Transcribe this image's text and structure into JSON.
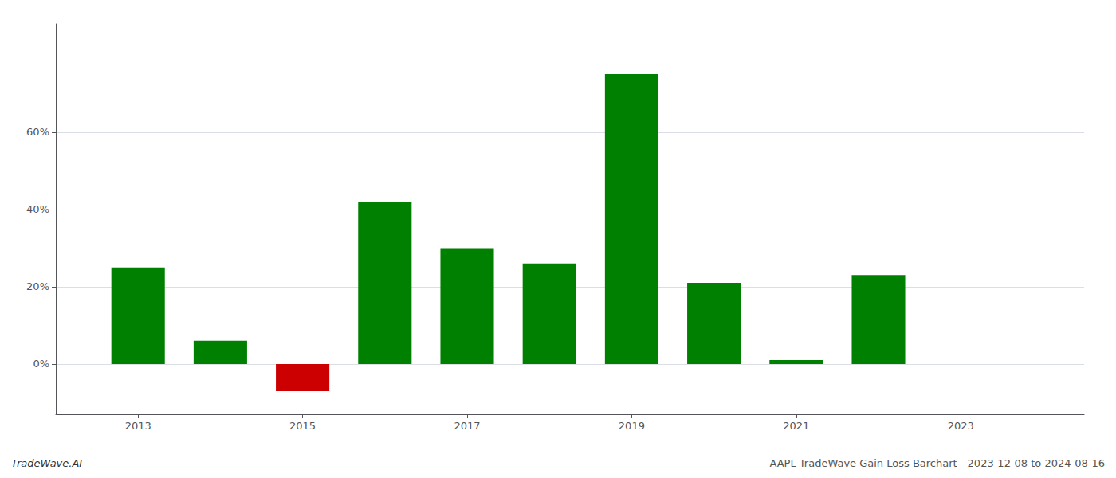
{
  "chart_data": {
    "type": "bar",
    "x": [
      2013,
      2014,
      2015,
      2016,
      2017,
      2018,
      2019,
      2020,
      2021,
      2022,
      2023
    ],
    "values": [
      0.25,
      0.06,
      -0.07,
      0.42,
      0.3,
      0.26,
      0.75,
      0.21,
      0.01,
      0.23,
      0.0
    ],
    "colors": [
      "#008000",
      "#008000",
      "#cc0000",
      "#008000",
      "#008000",
      "#008000",
      "#008000",
      "#008000",
      "#008000",
      "#008000",
      "#008000"
    ],
    "xlim": [
      2012.0,
      2024.5
    ],
    "xticks": [
      2013,
      2015,
      2017,
      2019,
      2021,
      2023
    ],
    "ylim": [
      -0.13,
      0.88
    ],
    "yticks": [
      {
        "value": 0.0,
        "label": "0%"
      },
      {
        "value": 0.2,
        "label": "20%"
      },
      {
        "value": 0.4,
        "label": "40%"
      },
      {
        "value": 0.6,
        "label": "60%"
      }
    ],
    "grid": true,
    "annotations": [
      "TradeWave.AI",
      "AAPL TradeWave Gain Loss Barchart - 2023-12-08 to 2024-08-16"
    ]
  }
}
